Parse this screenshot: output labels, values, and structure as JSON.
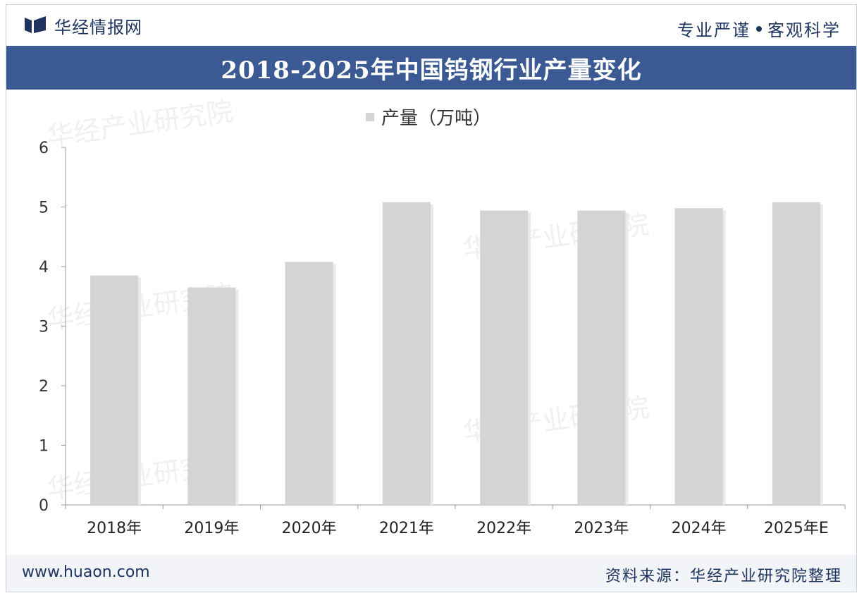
{
  "header": {
    "logo_text": "华经情报网",
    "slogan_left": "专业严谨",
    "slogan_right": "客观科学"
  },
  "title": "2018-2025年中国钨钢行业产量变化",
  "footer": {
    "website": "www.huaon.com",
    "source": "资料来源：华经产业研究院整理"
  },
  "watermark": "华经产业研究院",
  "colors": {
    "bar": "#d4d4d4",
    "title_band": "#3b5a93",
    "brand": "#1f3560"
  },
  "chart_data": {
    "type": "bar",
    "categories": [
      "2018年",
      "2019年",
      "2020年",
      "2021年",
      "2022年",
      "2023年",
      "2024年",
      "2025年E"
    ],
    "series": [
      {
        "name": "产量（万吨）",
        "values": [
          3.85,
          3.65,
          4.08,
          5.08,
          4.94,
          4.94,
          4.98,
          5.08
        ]
      }
    ],
    "ylim": [
      0,
      6
    ],
    "yticks": [
      0,
      1,
      2,
      3,
      4,
      5,
      6
    ],
    "legend": "top-center",
    "grid": false
  }
}
